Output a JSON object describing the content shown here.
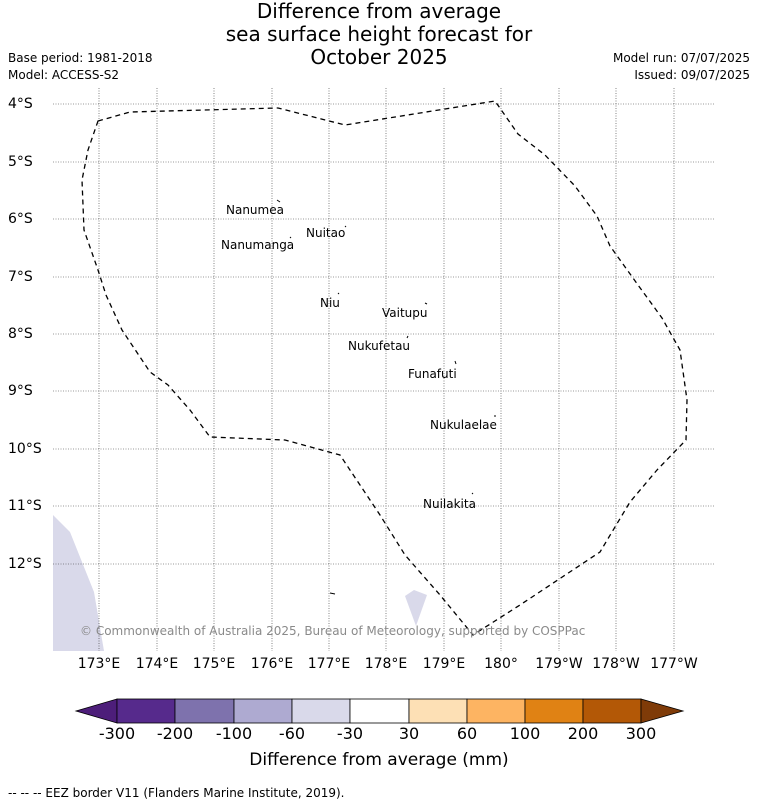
{
  "title": {
    "line1": "Difference from average",
    "line2": "sea surface height forecast for",
    "line3": "October 2025"
  },
  "meta": {
    "base_period": "Base period: 1981-2018",
    "model": "Model: ACCESS-S2",
    "model_run": "Model run: 07/07/2025",
    "issued": "Issued: 09/07/2025"
  },
  "map": {
    "y_axis_labels": [
      "4°S",
      "5°S",
      "6°S",
      "7°S",
      "8°S",
      "9°S",
      "10°S",
      "11°S",
      "12°S"
    ],
    "x_axis_labels": [
      "173°E",
      "174°E",
      "175°E",
      "176°E",
      "177°E",
      "178°E",
      "179°E",
      "180°",
      "179°W",
      "178°W",
      "177°W"
    ],
    "islands": [
      {
        "name": "Nanumea"
      },
      {
        "name": "Nuitao"
      },
      {
        "name": "Nanumanga"
      },
      {
        "name": "Niu"
      },
      {
        "name": "Vaitupu"
      },
      {
        "name": "Nukufetau"
      },
      {
        "name": "Funafuti"
      },
      {
        "name": "Nukulaelae"
      },
      {
        "name": "Nuilakita"
      }
    ],
    "anomaly_fill_color": "#d9d9ea",
    "eez_border_style": "dashed black",
    "copyright": "© Commonwealth of Australia 2025, Bureau of Meteorology, supported by COSPPac"
  },
  "colorbar": {
    "tick_labels": [
      "-300",
      "-200",
      "-100",
      "-60",
      "-30",
      "30",
      "60",
      "100",
      "200",
      "300"
    ],
    "colors": [
      "#4d1e7a",
      "#562a8c",
      "#7e72ad",
      "#aeaad1",
      "#d9d9ea",
      "#ffffff",
      "#fde0b5",
      "#fdb462",
      "#e08214",
      "#b35806",
      "#7f3b08"
    ],
    "label": "Difference from average (mm)"
  },
  "footnote": "-- -- -- EEZ border V11 (Flanders Marine Institute, 2019)."
}
